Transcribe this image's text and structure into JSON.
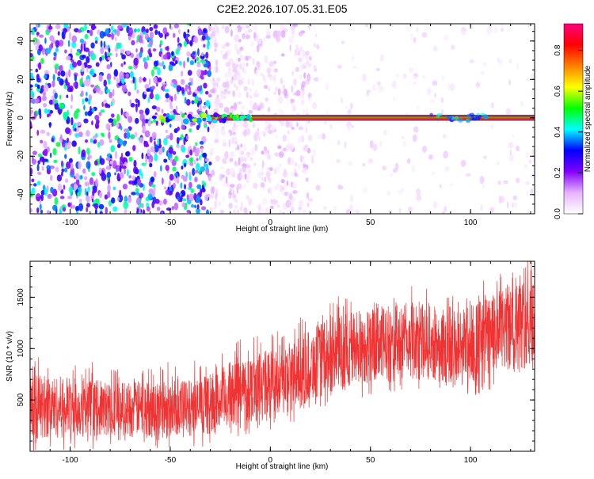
{
  "title": "C2E2.2026.107.05.31.E05",
  "chart_data": [
    {
      "type": "heatmap",
      "title": "C2E2.2026.107.05.31.E05",
      "xlabel": "Height of straight line (km)",
      "ylabel": "Frequency (Hz)",
      "xlim": [
        -120,
        132
      ],
      "ylim": [
        -50,
        49
      ],
      "x_ticks": [
        -100,
        -50,
        0,
        50,
        100
      ],
      "y_ticks": [
        -40,
        -20,
        0,
        20,
        40
      ],
      "x_tick_labels": [
        "-100",
        "-50",
        "0",
        "50",
        "100"
      ],
      "y_tick_labels": [
        "-40",
        "-20",
        "0",
        "20",
        "40"
      ],
      "colorbar": {
        "label": "Normalized spectral amplitude",
        "range": [
          0,
          0.93
        ],
        "ticks": [
          0,
          0.2,
          0.4,
          0.6,
          0.8
        ],
        "tick_labels": [
          "0.0",
          "0.2",
          "0.4",
          "0.6",
          "0.8"
        ],
        "colors": [
          "#ffffff",
          "#e6b3ff",
          "#8000ff",
          "#0000ff",
          "#00ffff",
          "#00ff00",
          "#ffff00",
          "#ff8000",
          "#ff0000",
          "#ff0080"
        ]
      },
      "carrier_line": {
        "frequency_hz": 0,
        "amplitude": 0.85
      },
      "noise_regions": [
        {
          "x": [
            -120,
            -30
          ],
          "amplitude": [
            0.1,
            0.5
          ],
          "density": "high"
        },
        {
          "x": [
            -30,
            20
          ],
          "amplitude": [
            0.02,
            0.12
          ],
          "density": "medium"
        },
        {
          "x": [
            20,
            132
          ],
          "amplitude": [
            0.02,
            0.08
          ],
          "density": "low"
        }
      ]
    },
    {
      "type": "line",
      "xlabel": "Height of straight line (km)",
      "ylabel": "SNR (10 * v/v)",
      "xlim": [
        -120,
        132
      ],
      "ylim": [
        0,
        1850
      ],
      "x_ticks": [
        -100,
        -50,
        0,
        50,
        100
      ],
      "y_ticks": [
        500,
        1000,
        1500
      ],
      "x_tick_labels": [
        "-100",
        "-50",
        "0",
        "50",
        "100"
      ],
      "y_tick_labels": [
        "500",
        "1000",
        "1500"
      ],
      "series": [
        {
          "color": "#f03232",
          "envelope_x": [
            -120,
            -100,
            -80,
            -60,
            -40,
            -30,
            -20,
            -10,
            0,
            10,
            20,
            30,
            40,
            50,
            60,
            70,
            80,
            90,
            100,
            110,
            120,
            132
          ],
          "envelope_low": [
            120,
            130,
            150,
            140,
            150,
            170,
            220,
            280,
            330,
            380,
            480,
            560,
            620,
            660,
            680,
            700,
            700,
            620,
            640,
            720,
            780,
            820
          ],
          "envelope_high": [
            760,
            720,
            680,
            690,
            700,
            720,
            880,
            960,
            1000,
            1050,
            1200,
            1300,
            1380,
            1400,
            1420,
            1450,
            1420,
            1380,
            1450,
            1520,
            1620,
            1750
          ]
        }
      ]
    }
  ]
}
